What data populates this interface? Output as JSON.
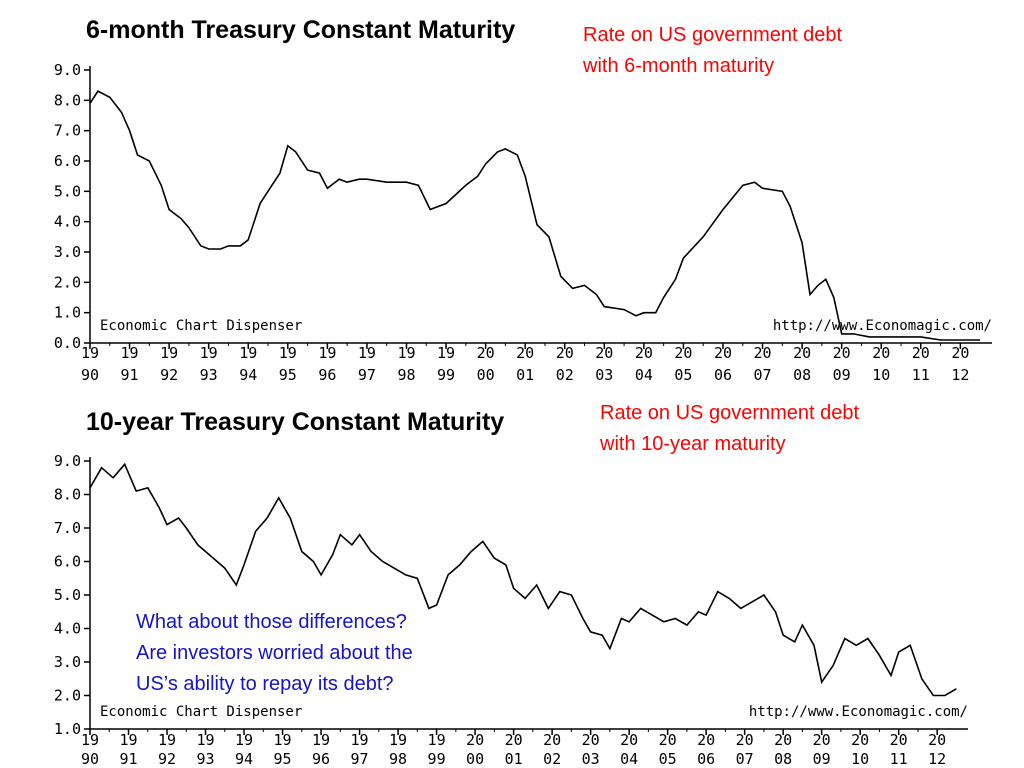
{
  "annotations": {
    "red_top": [
      "Rate on US government debt",
      "with 6-month maturity"
    ],
    "red_bottom": [
      "Rate on US government debt",
      "with 10-year maturity"
    ],
    "blue": [
      "What about those differences?",
      "Are investors worried about the",
      "US’s ability to repay its debt?"
    ]
  },
  "colors": {
    "red": "#ff0000",
    "blue": "#1414c8",
    "line": "#000000"
  },
  "chart_data": [
    {
      "type": "line",
      "title": "6-month Treasury Constant Maturity",
      "xlabel": "",
      "ylabel": "",
      "ylim": [
        0,
        9
      ],
      "xlim": [
        1990,
        2012.8
      ],
      "yticks": [
        "0.0",
        "1.0",
        "2.0",
        "3.0",
        "4.0",
        "5.0",
        "6.0",
        "7.0",
        "8.0",
        "9.0"
      ],
      "xticks_top": [
        "19",
        "19",
        "19",
        "19",
        "19",
        "19",
        "19",
        "19",
        "19",
        "19",
        "20",
        "20",
        "20",
        "20",
        "20",
        "20",
        "20",
        "20",
        "20",
        "20",
        "20",
        "20",
        "20"
      ],
      "xticks_bottom": [
        "90",
        "91",
        "92",
        "93",
        "94",
        "95",
        "96",
        "97",
        "98",
        "99",
        "00",
        "01",
        "02",
        "03",
        "04",
        "05",
        "06",
        "07",
        "08",
        "09",
        "10",
        "11",
        "12"
      ],
      "watermark_left": "Economic Chart Dispenser",
      "watermark_right": "http://www.Economagic.com/",
      "series": [
        {
          "name": "6-month",
          "x": [
            1990.0,
            1990.2,
            1990.5,
            1990.8,
            1991.0,
            1991.2,
            1991.5,
            1991.8,
            1992.0,
            1992.3,
            1992.5,
            1992.8,
            1993.0,
            1993.3,
            1993.5,
            1993.8,
            1994.0,
            1994.3,
            1994.5,
            1994.8,
            1995.0,
            1995.2,
            1995.5,
            1995.8,
            1996.0,
            1996.3,
            1996.5,
            1996.8,
            1997.0,
            1997.5,
            1998.0,
            1998.3,
            1998.6,
            1998.8,
            1999.0,
            1999.5,
            1999.8,
            2000.0,
            2000.3,
            2000.5,
            2000.8,
            2001.0,
            2001.3,
            2001.6,
            2001.9,
            2002.2,
            2002.5,
            2002.8,
            2003.0,
            2003.5,
            2003.8,
            2004.0,
            2004.3,
            2004.5,
            2004.8,
            2005.0,
            2005.5,
            2006.0,
            2006.5,
            2006.8,
            2007.0,
            2007.5,
            2007.7,
            2008.0,
            2008.2,
            2008.4,
            2008.6,
            2008.8,
            2009.0,
            2009.3,
            2009.7,
            2010.0,
            2010.5,
            2011.0,
            2011.5,
            2012.0,
            2012.5
          ],
          "values": [
            7.9,
            8.3,
            8.1,
            7.6,
            7.0,
            6.2,
            6.0,
            5.2,
            4.4,
            4.1,
            3.8,
            3.2,
            3.1,
            3.1,
            3.2,
            3.2,
            3.4,
            4.6,
            5.0,
            5.6,
            6.5,
            6.3,
            5.7,
            5.6,
            5.1,
            5.4,
            5.3,
            5.4,
            5.4,
            5.3,
            5.3,
            5.2,
            4.4,
            4.5,
            4.6,
            5.2,
            5.5,
            5.9,
            6.3,
            6.4,
            6.2,
            5.5,
            3.9,
            3.5,
            2.2,
            1.8,
            1.9,
            1.6,
            1.2,
            1.1,
            0.9,
            1.0,
            1.0,
            1.5,
            2.1,
            2.8,
            3.5,
            4.4,
            5.2,
            5.3,
            5.1,
            5.0,
            4.5,
            3.3,
            1.6,
            1.9,
            2.1,
            1.5,
            0.3,
            0.3,
            0.2,
            0.2,
            0.2,
            0.2,
            0.1,
            0.1,
            0.1
          ]
        }
      ]
    },
    {
      "type": "line",
      "title": "10-year Treasury Constant Maturity",
      "xlabel": "",
      "ylabel": "",
      "ylim": [
        1,
        9
      ],
      "xlim": [
        1990,
        2012.8
      ],
      "yticks": [
        "1.0",
        "2.0",
        "3.0",
        "4.0",
        "5.0",
        "6.0",
        "7.0",
        "8.0",
        "9.0"
      ],
      "xticks_top": [
        "19",
        "19",
        "19",
        "19",
        "19",
        "19",
        "19",
        "19",
        "19",
        "19",
        "20",
        "20",
        "20",
        "20",
        "20",
        "20",
        "20",
        "20",
        "20",
        "20",
        "20",
        "20",
        "20"
      ],
      "xticks_bottom": [
        "90",
        "91",
        "92",
        "93",
        "94",
        "95",
        "96",
        "97",
        "98",
        "99",
        "00",
        "01",
        "02",
        "03",
        "04",
        "05",
        "06",
        "07",
        "08",
        "09",
        "10",
        "11",
        "12"
      ],
      "watermark_left": "Economic Chart Dispenser",
      "watermark_right": "http://www.Economagic.com/",
      "series": [
        {
          "name": "10-year",
          "x": [
            1990.0,
            1990.3,
            1990.6,
            1990.9,
            1991.2,
            1991.5,
            1991.8,
            1992.0,
            1992.3,
            1992.5,
            1992.8,
            1993.0,
            1993.3,
            1993.5,
            1993.8,
            1994.0,
            1994.3,
            1994.6,
            1994.9,
            1995.2,
            1995.5,
            1995.8,
            1996.0,
            1996.3,
            1996.5,
            1996.8,
            1997.0,
            1997.3,
            1997.6,
            1997.9,
            1998.2,
            1998.5,
            1998.8,
            1999.0,
            1999.3,
            1999.6,
            1999.9,
            2000.2,
            2000.5,
            2000.8,
            2001.0,
            2001.3,
            2001.6,
            2001.9,
            2002.2,
            2002.5,
            2002.8,
            2003.0,
            2003.3,
            2003.5,
            2003.8,
            2004.0,
            2004.3,
            2004.6,
            2004.9,
            2005.2,
            2005.5,
            2005.8,
            2006.0,
            2006.3,
            2006.6,
            2006.9,
            2007.2,
            2007.5,
            2007.8,
            2008.0,
            2008.3,
            2008.5,
            2008.8,
            2009.0,
            2009.3,
            2009.6,
            2009.9,
            2010.2,
            2010.5,
            2010.8,
            2011.0,
            2011.3,
            2011.6,
            2011.9,
            2012.2,
            2012.5
          ],
          "values": [
            8.2,
            8.8,
            8.5,
            8.9,
            8.1,
            8.2,
            7.6,
            7.1,
            7.3,
            7.0,
            6.5,
            6.3,
            6.0,
            5.8,
            5.3,
            5.9,
            6.9,
            7.3,
            7.9,
            7.3,
            6.3,
            6.0,
            5.6,
            6.2,
            6.8,
            6.5,
            6.8,
            6.3,
            6.0,
            5.8,
            5.6,
            5.5,
            4.6,
            4.7,
            5.6,
            5.9,
            6.3,
            6.6,
            6.1,
            5.9,
            5.2,
            4.9,
            5.3,
            4.6,
            5.1,
            5.0,
            4.3,
            3.9,
            3.8,
            3.4,
            4.3,
            4.2,
            4.6,
            4.4,
            4.2,
            4.3,
            4.1,
            4.5,
            4.4,
            5.1,
            4.9,
            4.6,
            4.8,
            5.0,
            4.5,
            3.8,
            3.6,
            4.1,
            3.5,
            2.4,
            2.9,
            3.7,
            3.5,
            3.7,
            3.2,
            2.6,
            3.3,
            3.5,
            2.5,
            2.0,
            2.0,
            2.2
          ]
        }
      ]
    }
  ]
}
